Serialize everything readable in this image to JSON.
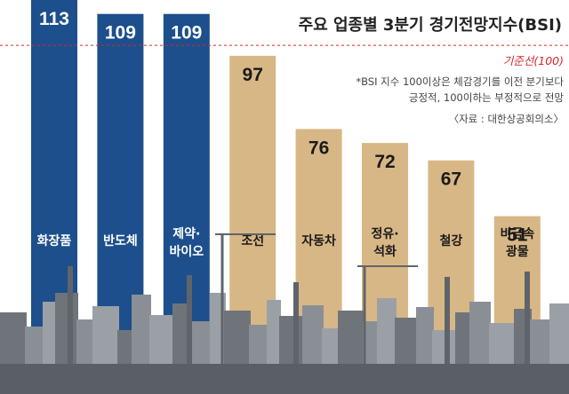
{
  "chart_data": {
    "type": "bar",
    "title": "주요 업종별 3분기 경기전망지수(BSI)",
    "categories": [
      [
        "화장품"
      ],
      [
        "반도체"
      ],
      [
        "제약·",
        "바이오"
      ],
      [
        "조선"
      ],
      [
        "자동차"
      ],
      [
        "정유·",
        "석화"
      ],
      [
        "철강"
      ],
      [
        "비금속",
        "광물"
      ]
    ],
    "values": [
      113,
      109,
      109,
      97,
      76,
      72,
      67,
      51
    ],
    "value_labels": [
      "113",
      "109",
      "109",
      "97",
      "76",
      "72",
      "67",
      "51"
    ],
    "reference_line": {
      "value": 100,
      "label": "기준선(100)",
      "color": "#d9262b"
    },
    "notes": [
      "*BSI 지수 100이상은 체감경기를 이전 분기보다",
      "긍정적, 100이하는 부정적으로 전망"
    ],
    "source": "〈자료 : 대한상공회의소〉",
    "colors": {
      "above_reference": "#1d4f8c",
      "below_reference": "#d8b786",
      "skyline": "#8a8f96"
    },
    "ylim": [
      0,
      113
    ],
    "grid": false
  }
}
